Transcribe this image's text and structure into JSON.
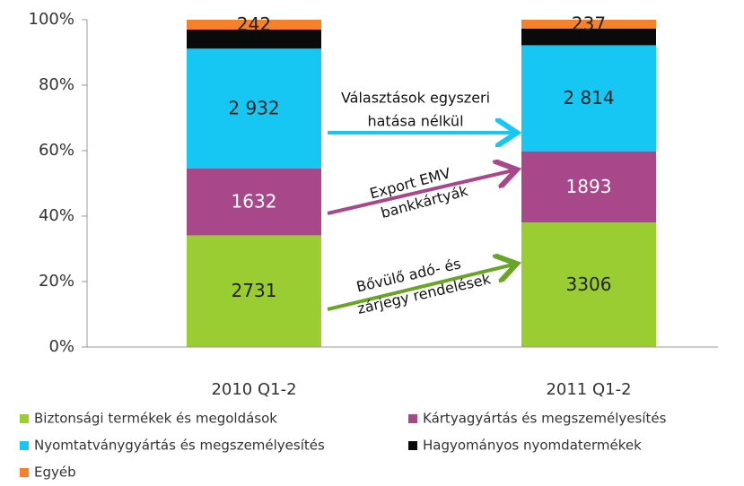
{
  "chart_data": {
    "type": "bar",
    "stacking": "percent",
    "categories": [
      "2010 Q1-2",
      "2011 Q1-2"
    ],
    "series": [
      {
        "name": "Biztonsági termékek és megoldások",
        "color": "#9acd32",
        "values": [
          2731,
          3306
        ],
        "value_labels": [
          "2731",
          "3306"
        ],
        "label_color": "#222"
      },
      {
        "name": "Kártyagyártás és megszemélyesítés",
        "color": "#a8488a",
        "values": [
          1632,
          1893
        ],
        "value_labels": [
          "1632",
          "1893"
        ],
        "label_color": "#fff"
      },
      {
        "name": "Nyomtatványgyártás és megszemélyesítés",
        "color": "#17c7f3",
        "values": [
          2932,
          2814
        ],
        "value_labels": [
          "2 932",
          "2 814"
        ],
        "label_color": "#222"
      },
      {
        "name": "Hagyományos nyomdatermékek",
        "color": "#0a0a0a",
        "values": [
          465,
          440
        ]
      },
      {
        "name": "Egyéb",
        "color": "#f5822a",
        "values": [
          242,
          237
        ],
        "value_labels": [
          "242",
          "237"
        ],
        "label_color": "#222"
      }
    ],
    "ylim": [
      0,
      100
    ],
    "yticks": [
      {
        "value": 0,
        "label": "0%"
      },
      {
        "value": 20,
        "label": "20%"
      },
      {
        "value": 40,
        "label": "40%"
      },
      {
        "value": 60,
        "label": "60%"
      },
      {
        "value": 80,
        "label": "80%"
      },
      {
        "value": 100,
        "label": "100%"
      }
    ],
    "grid": false,
    "annotations": [
      [
        "Választások egyszeri",
        "hatása nélkül"
      ],
      [
        "Export EMV",
        "bankkártyák"
      ],
      [
        "Bővülő adó- és",
        "zárjegy rendelések"
      ]
    ]
  }
}
